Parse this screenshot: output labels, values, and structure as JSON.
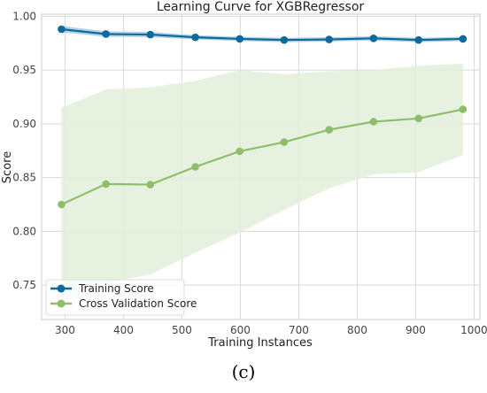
{
  "chart_data": {
    "type": "line",
    "title": "Learning Curve for XGBRegressor",
    "xlabel": "Training Instances",
    "ylabel": "Score",
    "xlim": [
      260,
      1010
    ],
    "ylim": [
      0.718,
      1.002
    ],
    "x_ticks": [
      300,
      400,
      500,
      600,
      700,
      800,
      900,
      1000
    ],
    "y_ticks": [
      0.75,
      0.8,
      0.85,
      0.9,
      0.95,
      1.0
    ],
    "y_tick_labels": [
      "0.75",
      "0.80",
      "0.85",
      "0.90",
      "0.95",
      "1.00"
    ],
    "grid": true,
    "legend_position": "bottom-left",
    "x": [
      294,
      370,
      446,
      523,
      599,
      675,
      752,
      828,
      905,
      981
    ],
    "series": [
      {
        "name": "Training Score",
        "color": "#0c6b9c",
        "band_color": "#a9c9e0",
        "values": [
          0.988,
          0.9835,
          0.983,
          0.9805,
          0.979,
          0.978,
          0.9785,
          0.9795,
          0.978,
          0.979
        ],
        "band_upper": [
          0.991,
          0.986,
          0.9855,
          0.9825,
          0.981,
          0.98,
          0.9805,
          0.9815,
          0.98,
          0.981
        ],
        "band_lower": [
          0.985,
          0.981,
          0.9805,
          0.9785,
          0.977,
          0.976,
          0.9765,
          0.9775,
          0.976,
          0.977
        ]
      },
      {
        "name": "Cross Validation Score",
        "color": "#8fbe6a",
        "band_color": "#e3eedb",
        "values": [
          0.825,
          0.844,
          0.8435,
          0.86,
          0.8745,
          0.883,
          0.8945,
          0.902,
          0.905,
          0.9135
        ],
        "band_upper": [
          0.915,
          0.932,
          0.934,
          0.94,
          0.95,
          0.946,
          0.949,
          0.95,
          0.954,
          0.956
        ],
        "band_lower": [
          0.733,
          0.752,
          0.76,
          0.78,
          0.799,
          0.82,
          0.84,
          0.853,
          0.855,
          0.871
        ]
      }
    ]
  },
  "panel_label": "(c)"
}
